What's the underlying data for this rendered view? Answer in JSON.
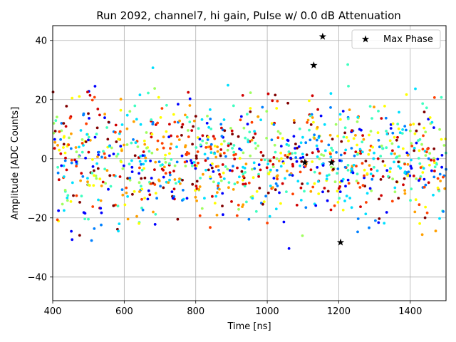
{
  "chart_data": {
    "type": "scatter",
    "title": "Run 2092, channel7, hi gain, Pulse w/ 0.0 dB Attenuation",
    "xlabel": "Time [ns]",
    "ylabel": "Amplitude [ADC Counts]",
    "xlim": [
      400,
      1500
    ],
    "ylim": [
      -48,
      45
    ],
    "xticks": [
      "400",
      "600",
      "800",
      "1000",
      "1200",
      "1400"
    ],
    "yticks": [
      "40",
      "20",
      "0",
      "−20",
      "−40"
    ],
    "xtick_values": [
      400,
      600,
      800,
      1000,
      1200,
      1400
    ],
    "ytick_values": [
      40,
      20,
      0,
      -20,
      -40
    ],
    "grid": true,
    "legend_position": "top-right",
    "legend": [
      {
        "name": "Max Phase",
        "marker": "star",
        "color": "#000000"
      }
    ],
    "colormap": [
      "#0000ff",
      "#0080ff",
      "#00e0ff",
      "#40ffc0",
      "#a0ff60",
      "#ffff00",
      "#ffa000",
      "#ff4000",
      "#d00000",
      "#800000"
    ],
    "max_phase_points": [
      {
        "x": 1155,
        "y": 41.3
      },
      {
        "x": 1130,
        "y": 31.6
      },
      {
        "x": 1105,
        "y": -1.3
      },
      {
        "x": 1180,
        "y": -1.3
      },
      {
        "x": 1205,
        "y": -28.3
      }
    ],
    "noise_points_note": "",
    "noise": {
      "count": 1100,
      "x_range": [
        400,
        1500
      ],
      "y_sigma": 10,
      "y_clip": 38
    }
  }
}
